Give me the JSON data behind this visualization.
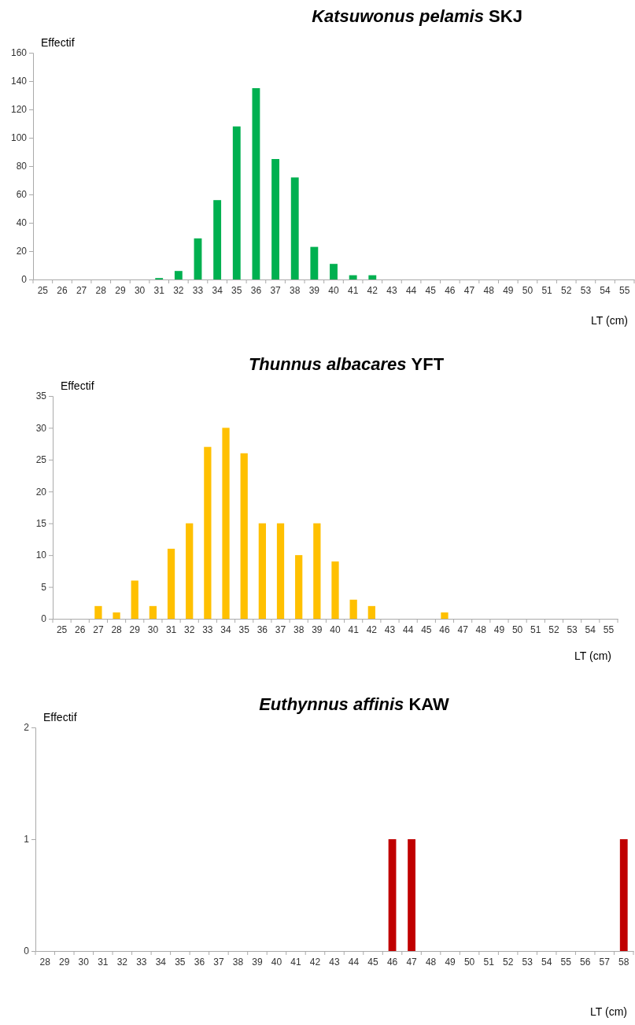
{
  "chart_data": [
    {
      "type": "bar",
      "title": "Katsuwonus pelamis SKJ",
      "ylabel": "Effectif",
      "xlabel": "LT (cm)",
      "categories": [
        "25",
        "26",
        "27",
        "28",
        "29",
        "30",
        "31",
        "32",
        "33",
        "34",
        "35",
        "36",
        "37",
        "38",
        "39",
        "40",
        "41",
        "42",
        "43",
        "44",
        "45",
        "46",
        "47",
        "48",
        "49",
        "50",
        "51",
        "52",
        "53",
        "54",
        "55"
      ],
      "series": [
        {
          "color": "#00b050",
          "values": [
            0,
            0,
            0,
            0,
            0,
            0,
            1,
            6,
            29,
            56,
            108,
            135,
            85,
            72,
            23,
            11,
            3,
            3,
            0,
            0,
            0,
            0,
            0,
            0,
            0,
            0,
            0,
            0,
            0,
            0,
            0
          ]
        }
      ],
      "ylim": [
        0,
        160
      ],
      "yticks": [
        0,
        20,
        40,
        60,
        80,
        100,
        120,
        140,
        160
      ],
      "grid": false
    },
    {
      "type": "bar",
      "title": "Thunnus albacares YFT",
      "ylabel": "Effectif",
      "xlabel": "LT (cm)",
      "categories": [
        "25",
        "26",
        "27",
        "28",
        "29",
        "30",
        "31",
        "32",
        "33",
        "34",
        "35",
        "36",
        "37",
        "38",
        "39",
        "40",
        "41",
        "42",
        "43",
        "44",
        "45",
        "46",
        "47",
        "48",
        "49",
        "50",
        "51",
        "52",
        "53",
        "54",
        "55"
      ],
      "series": [
        {
          "color": "#ffc000",
          "values": [
            0,
            0,
            2,
            1,
            6,
            2,
            11,
            15,
            27,
            30,
            26,
            15,
            15,
            10,
            15,
            9,
            3,
            2,
            0,
            0,
            0,
            1,
            0,
            0,
            0,
            0,
            0,
            0,
            0,
            0,
            0
          ]
        }
      ],
      "ylim": [
        0,
        35
      ],
      "yticks": [
        0,
        5,
        10,
        15,
        20,
        25,
        30,
        35
      ],
      "grid": false
    },
    {
      "type": "bar",
      "title": "Euthynnus affinis KAW",
      "ylabel": "Effectif",
      "xlabel": "LT (cm)",
      "categories": [
        "28",
        "29",
        "30",
        "31",
        "32",
        "33",
        "34",
        "35",
        "36",
        "37",
        "38",
        "39",
        "40",
        "41",
        "42",
        "43",
        "44",
        "45",
        "46",
        "47",
        "48",
        "49",
        "50",
        "51",
        "52",
        "53",
        "54",
        "55",
        "56",
        "57",
        "58"
      ],
      "series": [
        {
          "color": "#c00000",
          "values": [
            0,
            0,
            0,
            0,
            0,
            0,
            0,
            0,
            0,
            0,
            0,
            0,
            0,
            0,
            0,
            0,
            0,
            0,
            1,
            1,
            0,
            0,
            0,
            0,
            0,
            0,
            0,
            0,
            0,
            0,
            1
          ]
        }
      ],
      "ylim": [
        0,
        2
      ],
      "yticks": [
        0,
        1,
        2
      ],
      "grid": false
    }
  ]
}
